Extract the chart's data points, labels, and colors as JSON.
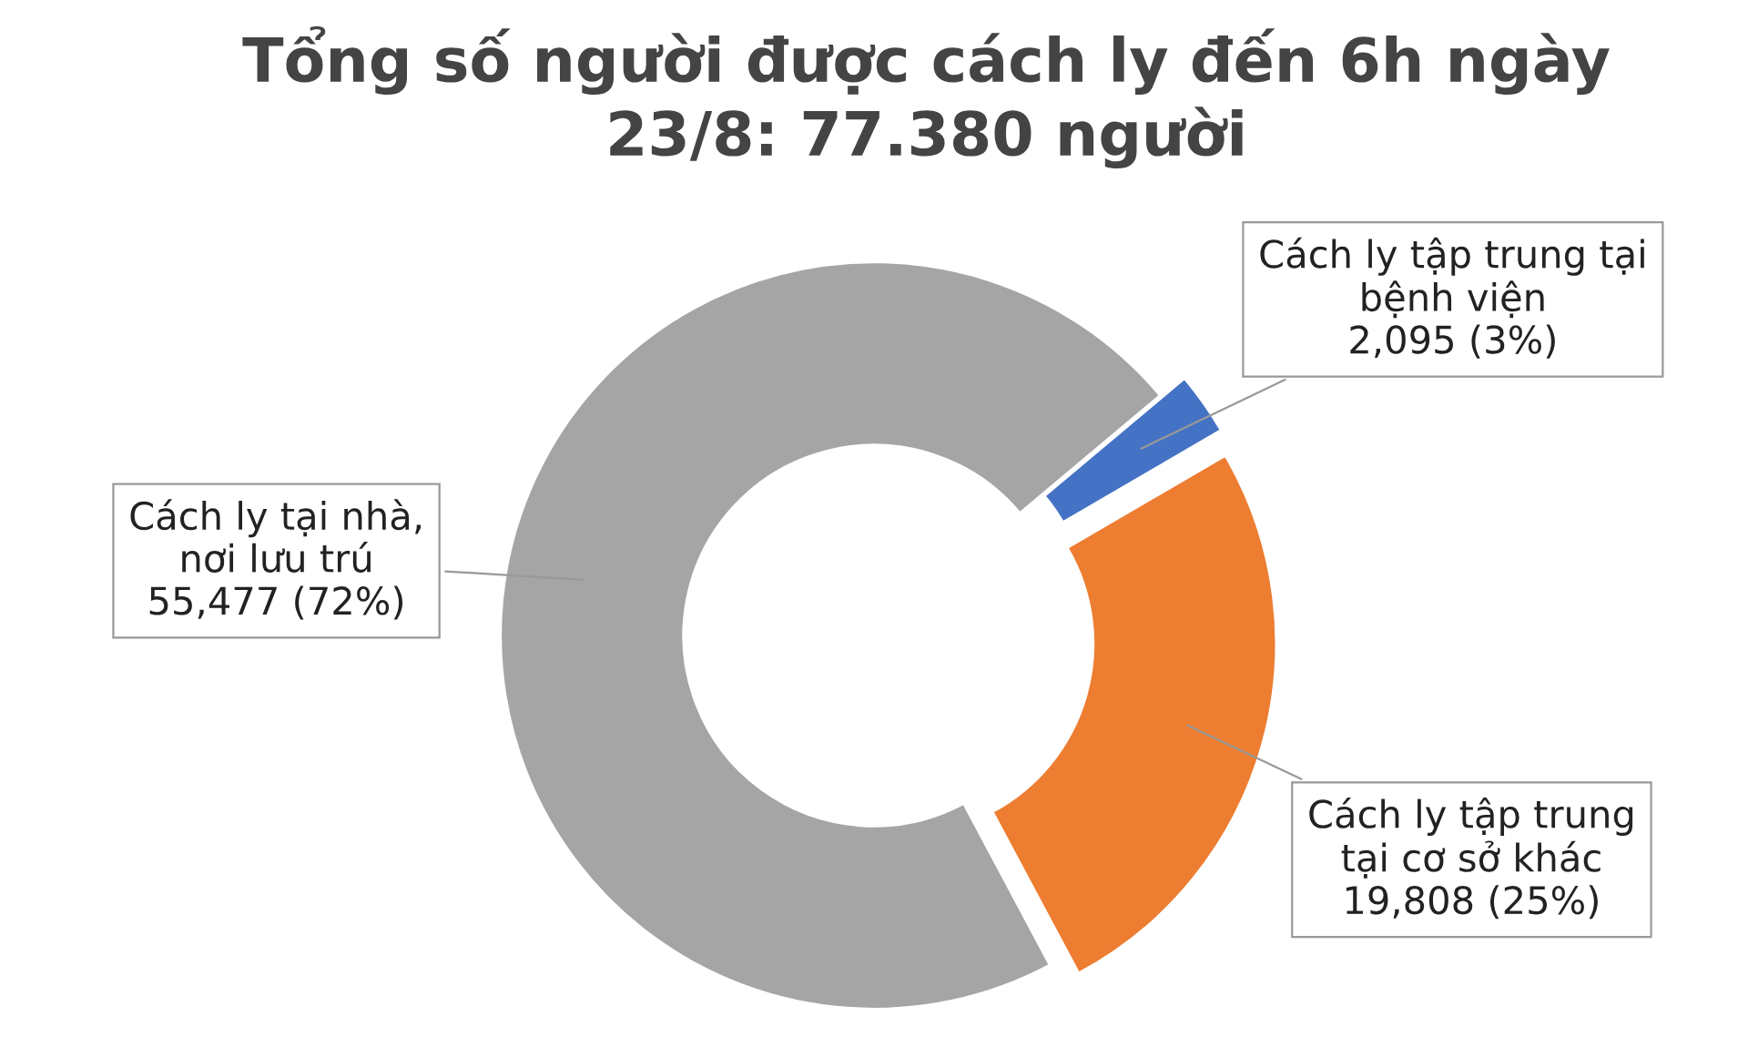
{
  "chart_data": {
    "type": "donut",
    "title": "Tổng số người được cách ly đến 6h ngày\n23/8: 77.380 người",
    "categories": [
      "Cách ly tập trung tại\nbệnh viện",
      "Cách ly tập trung\ntại cơ sở khác",
      "Cách ly tại nhà,\nnơi lưu trú"
    ],
    "values": [
      2095,
      19808,
      55477
    ],
    "colors": [
      "#4472c4",
      "#ed7d31",
      "#a5a5a5"
    ],
    "value_labels": [
      "2,095 (3%)",
      "19,808 (25%)",
      "55,477 (72%)"
    ],
    "legend": false
  }
}
